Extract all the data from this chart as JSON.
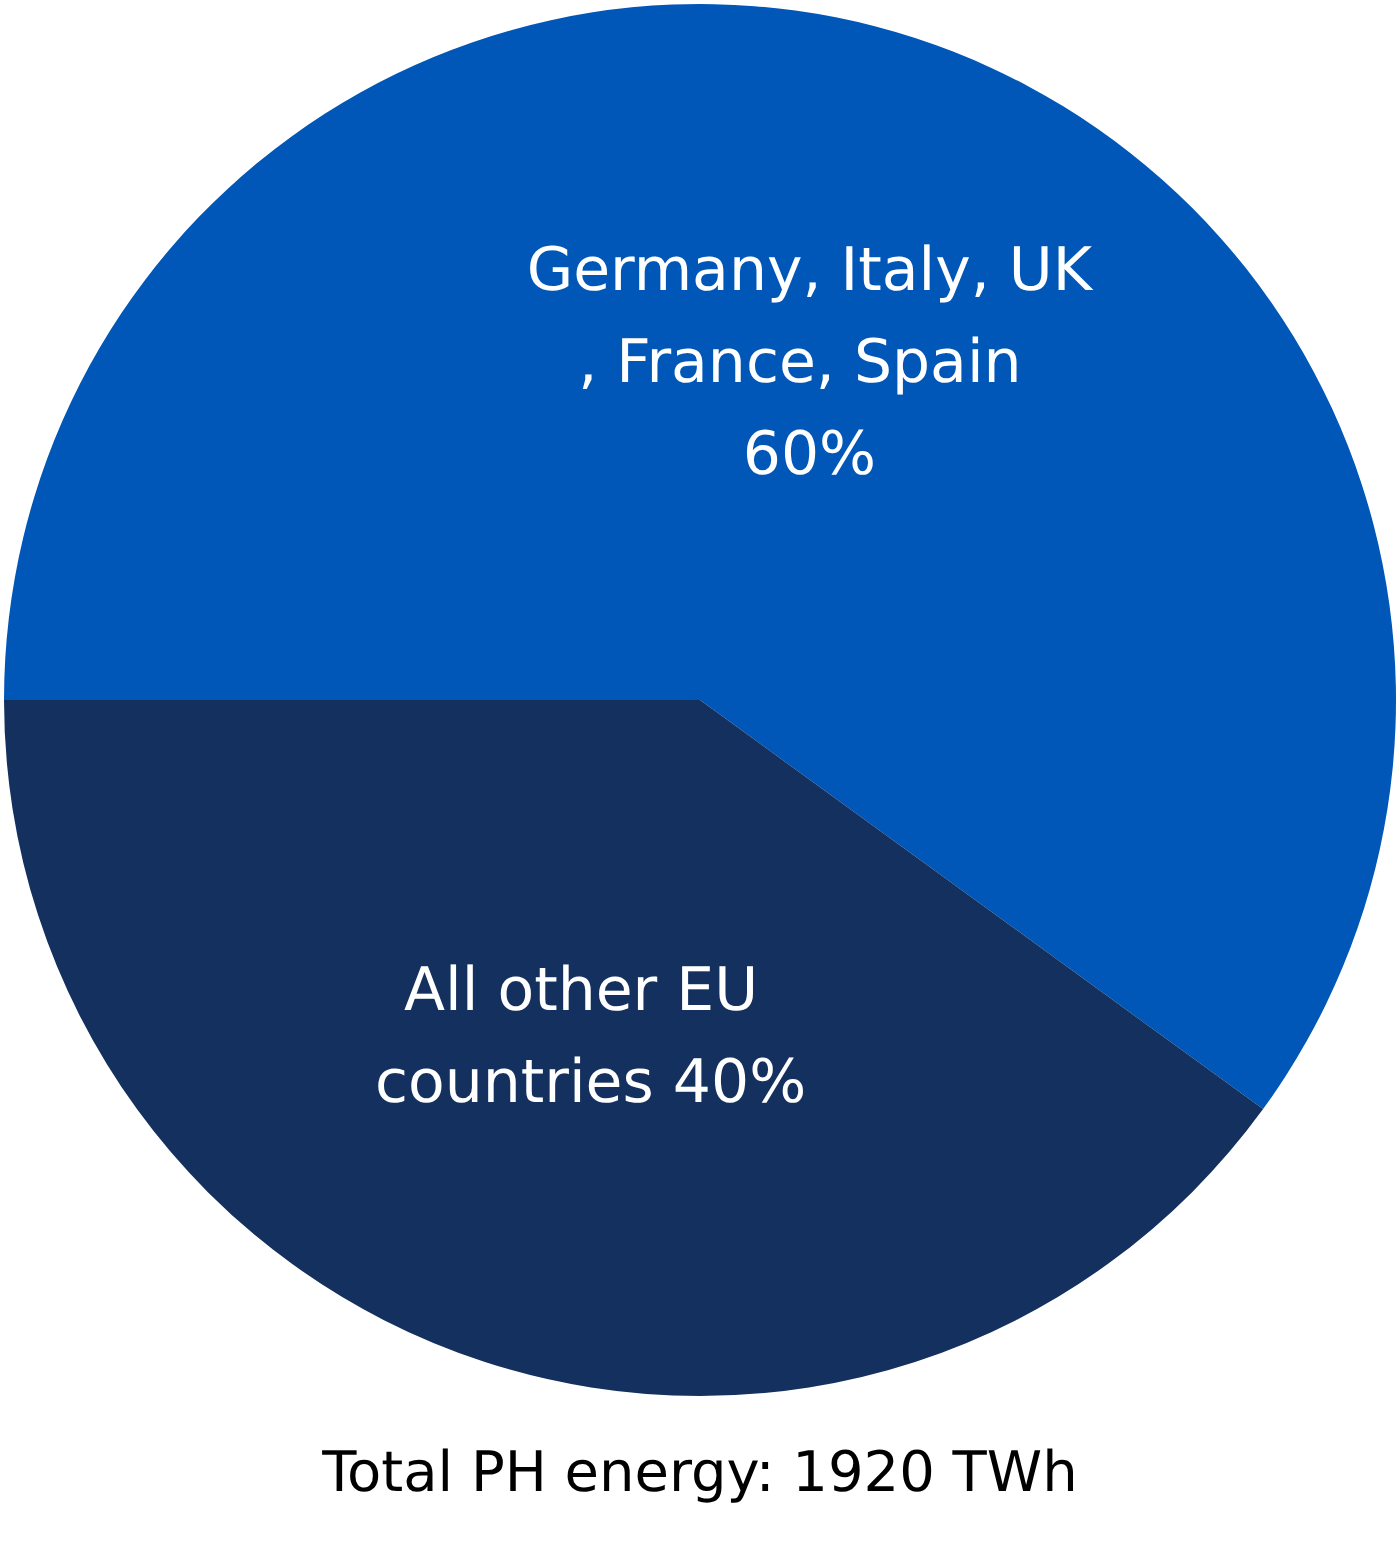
{
  "chart_data": {
    "type": "pie",
    "categories": [
      "Germany, Italy, UK, France, Spain",
      "All other EU countries"
    ],
    "values": [
      60,
      40
    ],
    "colors": [
      "#0057b8",
      "#14305e"
    ],
    "value_labels": [
      "60%",
      "40%"
    ],
    "legend": false,
    "annotations": [
      "Total PH energy: 1920 TWh"
    ]
  }
}
